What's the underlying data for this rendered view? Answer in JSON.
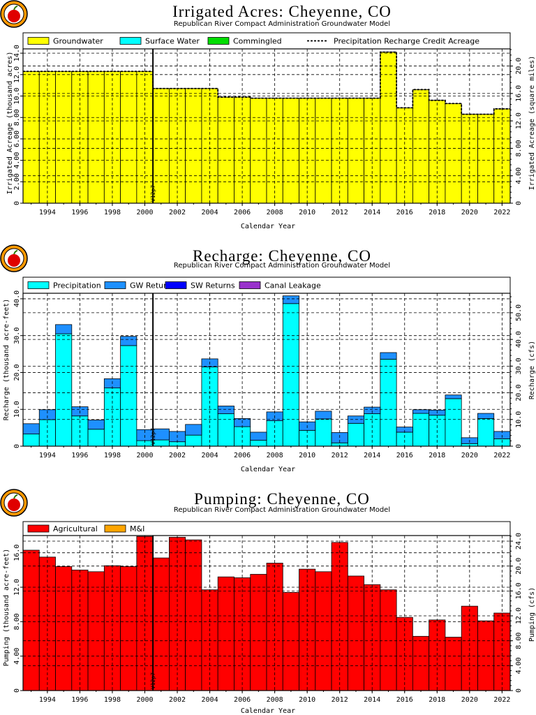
{
  "chart_data": [
    {
      "type": "bar",
      "title": "Irrigated Acres: Cheyenne, CO",
      "subtitle": "Republican River Compact Administration Groundwater Model",
      "xlabel": "Calendar Year",
      "ylabel": "Irrigated Acreage (thousand acres)",
      "ylabel_right": "Irrigated Acreage (square miles)",
      "x": [
        1993,
        1994,
        1995,
        1996,
        1997,
        1998,
        1999,
        2000,
        2001,
        2002,
        2003,
        2004,
        2005,
        2006,
        2007,
        2008,
        2009,
        2010,
        2011,
        2012,
        2013,
        2014,
        2015,
        2016,
        2017,
        2018,
        2019,
        2020,
        2021,
        2022
      ],
      "xticks": [
        "1994",
        "1996",
        "1998",
        "2000",
        "2002",
        "2004",
        "2006",
        "2008",
        "2010",
        "2012",
        "2014",
        "2016",
        "2018",
        "2020",
        "2022"
      ],
      "xlim": [
        1992.5,
        2022.5
      ],
      "ylim": [
        0,
        14.4
      ],
      "yticks": [
        "0",
        "2.00",
        "4.00",
        "6.00",
        "8.00",
        "10.0",
        "12.0",
        "14.0"
      ],
      "ylim_right": [
        0,
        22.5
      ],
      "yticks_right": [
        "0",
        "4.00",
        "8.00",
        "12.0",
        "16.0",
        "20.0"
      ],
      "stacked": true,
      "legend_position": "top",
      "series": [
        {
          "name": "Groundwater",
          "color": "#ffff00",
          "values": [
            12.3,
            12.3,
            12.3,
            12.3,
            12.3,
            12.3,
            12.3,
            12.3,
            10.7,
            10.7,
            10.7,
            10.7,
            9.9,
            9.9,
            9.8,
            9.8,
            9.8,
            9.8,
            9.8,
            9.8,
            9.8,
            9.8,
            14.1,
            8.9,
            10.6,
            9.6,
            9.3,
            8.3,
            8.3,
            8.8
          ]
        },
        {
          "name": "Surface Water",
          "color": "#00ffff",
          "values": [
            0,
            0,
            0,
            0,
            0,
            0,
            0,
            0,
            0,
            0,
            0,
            0,
            0,
            0,
            0,
            0,
            0,
            0,
            0,
            0,
            0,
            0,
            0,
            0,
            0,
            0,
            0,
            0,
            0,
            0
          ]
        },
        {
          "name": "Commingled",
          "color": "#00dd00",
          "values": [
            0,
            0,
            0,
            0,
            0,
            0,
            0,
            0,
            0,
            0,
            0,
            0,
            0,
            0,
            0,
            0,
            0,
            0,
            0,
            0,
            0,
            0,
            0,
            0,
            0,
            0,
            0,
            0,
            0,
            0
          ]
        }
      ],
      "line": {
        "name": "Precipitation Recharge Credit Acreage",
        "style": "dashed",
        "values": [
          12.3,
          12.3,
          12.3,
          12.3,
          12.3,
          12.3,
          12.3,
          12.3,
          10.7,
          10.7,
          10.7,
          10.7,
          9.9,
          9.9,
          9.8,
          9.8,
          9.8,
          9.8,
          9.8,
          9.8,
          9.8,
          9.8,
          14.1,
          8.9,
          10.6,
          9.6,
          9.3,
          8.3,
          8.3,
          8.8
        ]
      },
      "marker": {
        "x": 2000.5,
        "label": "V12p7"
      },
      "grid": true
    },
    {
      "type": "bar",
      "title": "Recharge: Cheyenne, CO",
      "subtitle": "Republican River Compact Administration Groundwater Model",
      "xlabel": "Calendar Year",
      "ylabel": "Recharge (thousand acre-feet)",
      "ylabel_right": "Recharge (cfs)",
      "x": [
        1993,
        1994,
        1995,
        1996,
        1997,
        1998,
        1999,
        2000,
        2001,
        2002,
        2003,
        2004,
        2005,
        2006,
        2007,
        2008,
        2009,
        2010,
        2011,
        2012,
        2013,
        2014,
        2015,
        2016,
        2017,
        2018,
        2019,
        2020,
        2021,
        2022
      ],
      "xticks": [
        "1994",
        "1996",
        "1998",
        "2000",
        "2002",
        "2004",
        "2006",
        "2008",
        "2010",
        "2012",
        "2014",
        "2016",
        "2018",
        "2020",
        "2022"
      ],
      "xlim": [
        1992.5,
        2022.5
      ],
      "ylim": [
        0,
        41.5
      ],
      "yticks": [
        "0",
        "10.0",
        "20.0",
        "30.0",
        "40.0"
      ],
      "ylim_right": [
        0,
        57.3
      ],
      "yticks_right": [
        "0",
        "10.0",
        "20.0",
        "30.0",
        "40.0",
        "50.0"
      ],
      "stacked": true,
      "legend_position": "top",
      "series": [
        {
          "name": "Precipitation",
          "color": "#00ffff",
          "values": [
            3.3,
            7.2,
            30.5,
            8.2,
            4.6,
            15.8,
            27.3,
            1.5,
            1.7,
            1.2,
            3.0,
            21.5,
            8.8,
            5.3,
            1.6,
            6.9,
            38.7,
            4.3,
            7.4,
            0.9,
            6.2,
            8.8,
            23.6,
            3.8,
            8.9,
            8.4,
            12.9,
            0.7,
            7.5,
            2.0
          ]
        },
        {
          "name": "GW Returns",
          "color": "#1e90ff",
          "values": [
            2.8,
            2.7,
            2.5,
            2.5,
            2.5,
            2.5,
            2.5,
            3.0,
            3.0,
            2.8,
            2.9,
            2.2,
            2.1,
            2.2,
            2.2,
            2.4,
            2.1,
            2.3,
            2.1,
            2.8,
            2.0,
            1.8,
            1.8,
            1.4,
            1.0,
            1.4,
            1.0,
            1.6,
            1.4,
            2.0
          ]
        },
        {
          "name": "SW Returns",
          "color": "#0000ff",
          "values": [
            0,
            0,
            0,
            0,
            0,
            0,
            0,
            0,
            0,
            0,
            0,
            0,
            0,
            0,
            0,
            0,
            0,
            0,
            0,
            0,
            0,
            0,
            0,
            0,
            0,
            0,
            0,
            0,
            0,
            0
          ]
        },
        {
          "name": "Canal Leakage",
          "color": "#9932cc",
          "values": [
            0,
            0,
            0,
            0,
            0,
            0,
            0,
            0,
            0,
            0,
            0,
            0,
            0,
            0,
            0,
            0,
            0,
            0,
            0,
            0,
            0,
            0,
            0,
            0,
            0,
            0,
            0,
            0,
            0,
            0
          ]
        }
      ],
      "marker": {
        "x": 2000.5,
        "label": "V12p7"
      },
      "grid": true
    },
    {
      "type": "bar",
      "title": "Pumping: Cheyenne, CO",
      "subtitle": "Republican River Compact Administration Groundwater Model",
      "xlabel": "Calendar Year",
      "ylabel": "Pumping (thousand acre-feet)",
      "ylabel_right": "Pumping (cfs)",
      "x": [
        1993,
        1994,
        1995,
        1996,
        1997,
        1998,
        1999,
        2000,
        2001,
        2002,
        2003,
        2004,
        2005,
        2006,
        2007,
        2008,
        2009,
        2010,
        2011,
        2012,
        2013,
        2014,
        2015,
        2016,
        2017,
        2018,
        2019,
        2020,
        2021,
        2022
      ],
      "xticks": [
        "1994",
        "1996",
        "1998",
        "2000",
        "2002",
        "2004",
        "2006",
        "2008",
        "2010",
        "2012",
        "2014",
        "2016",
        "2018",
        "2020",
        "2022"
      ],
      "xlim": [
        1992.5,
        2022.5
      ],
      "ylim": [
        0,
        18.0
      ],
      "yticks": [
        "0",
        "4.00",
        "8.00",
        "12.0",
        "16.0"
      ],
      "ylim_right": [
        0,
        24.9
      ],
      "yticks_right": [
        "0",
        "4.00",
        "8.00",
        "12.0",
        "16.0",
        "20.0",
        "24.0"
      ],
      "stacked": true,
      "legend_position": "top",
      "series": [
        {
          "name": "Agricultural",
          "color": "#ff0000",
          "values": [
            16.3,
            15.5,
            14.4,
            14.0,
            13.8,
            14.5,
            14.4,
            17.9,
            15.4,
            17.8,
            17.5,
            11.7,
            13.2,
            13.1,
            13.5,
            14.8,
            11.4,
            14.1,
            13.8,
            17.2,
            13.3,
            12.3,
            11.7,
            8.5,
            6.3,
            8.2,
            6.2,
            9.8,
            8.1,
            9.0
          ]
        },
        {
          "name": "M&I",
          "color": "#ffa500",
          "values": [
            0,
            0,
            0,
            0,
            0,
            0,
            0,
            0,
            0,
            0,
            0,
            0,
            0,
            0,
            0,
            0,
            0,
            0,
            0,
            0,
            0,
            0,
            0,
            0,
            0,
            0,
            0,
            0,
            0,
            0
          ]
        }
      ],
      "marker": {
        "x": 2000.5,
        "label": "V12p7"
      },
      "grid": true
    }
  ]
}
